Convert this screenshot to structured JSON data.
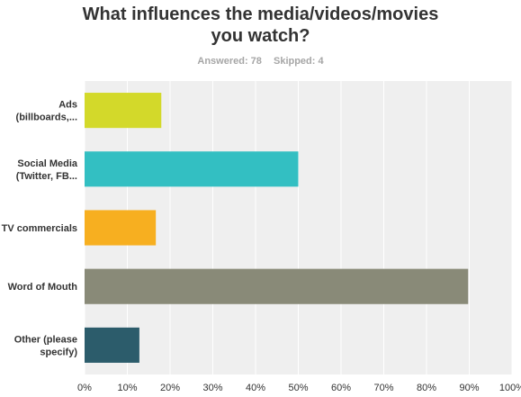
{
  "title": {
    "line1": "What influences the media/videos/movies",
    "line2": "you watch?"
  },
  "meta": {
    "answered_label": "Answered: 78",
    "skipped_label": "Skipped: 4"
  },
  "colors": {
    "background": "#efefef",
    "grid": "#ffffff",
    "text": "#333333",
    "meta": "#a6a6a6"
  },
  "chart_data": {
    "type": "bar",
    "orientation": "horizontal",
    "categories": [
      [
        "Ads",
        "(billboards,..."
      ],
      [
        "Social Media",
        "(Twitter, FB..."
      ],
      [
        "TV commercials"
      ],
      [
        "Word of Mouth"
      ],
      [
        "Other (please",
        "specify)"
      ]
    ],
    "values": [
      17.95,
      50.0,
      16.67,
      89.74,
      12.82
    ],
    "colors": [
      "#d3d92a",
      "#33bfc2",
      "#f7af20",
      "#898a78",
      "#2c5c6b"
    ],
    "xlim": [
      0,
      100
    ],
    "xticks": [
      "0%",
      "10%",
      "20%",
      "30%",
      "40%",
      "50%",
      "60%",
      "70%",
      "80%",
      "90%",
      "100%"
    ],
    "grid": true
  }
}
